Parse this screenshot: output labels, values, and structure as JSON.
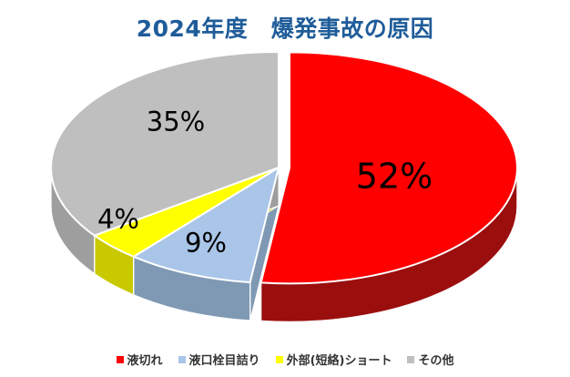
{
  "title": {
    "text": "2024年度　爆発事故の原因",
    "color": "#1F5C99"
  },
  "chart_data": {
    "type": "pie",
    "style": "3d-exploded",
    "title": "2024年度　爆発事故の原因",
    "unit": "%",
    "start_angle_deg": 0,
    "direction": "clockwise",
    "legend_position": "bottom",
    "slices": [
      {
        "label": "液切れ",
        "value": 52,
        "display": "52%",
        "color": "#FF0000",
        "side_color": "#9B0E0E",
        "exploded": true
      },
      {
        "label": "液口栓目詰り",
        "value": 9,
        "display": "9%",
        "color": "#A9C5E8",
        "side_color": "#7F99B4",
        "exploded": false
      },
      {
        "label": "外部(短絡)ショート",
        "value": 4,
        "display": "4%",
        "color": "#FFFF00",
        "side_color": "#C9C900",
        "exploded": false
      },
      {
        "label": "その他",
        "value": 35,
        "display": "35%",
        "color": "#BFBFBF",
        "side_color": "#9E9E9E",
        "exploded": false
      }
    ]
  }
}
